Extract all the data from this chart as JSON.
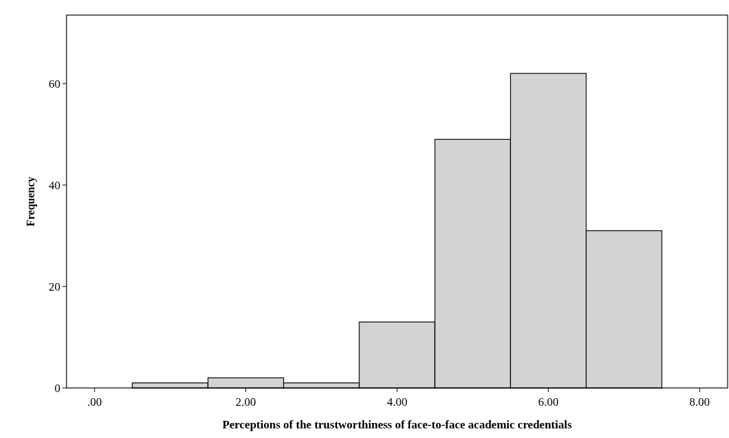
{
  "chart_data": {
    "type": "histogram",
    "xlabel": "Perceptions of the trustworthiness of face-to-face academic credentials",
    "ylabel": "Frequency",
    "bins": [
      0.5,
      1.5,
      2.5,
      3.5,
      4.5,
      5.5,
      6.5,
      7.5
    ],
    "values": [
      1,
      2,
      1,
      13,
      49,
      62,
      31
    ],
    "color": "#d3d3d3",
    "xlim": [
      -0.37,
      8.37
    ],
    "ylim": [
      0,
      73.5
    ],
    "xticks": [
      {
        "value": 0,
        "label": ".00"
      },
      {
        "value": 2,
        "label": "2.00"
      },
      {
        "value": 4,
        "label": "4.00"
      },
      {
        "value": 6,
        "label": "6.00"
      },
      {
        "value": 8,
        "label": "8.00"
      }
    ],
    "yticks": [
      0,
      20,
      40,
      60
    ]
  }
}
